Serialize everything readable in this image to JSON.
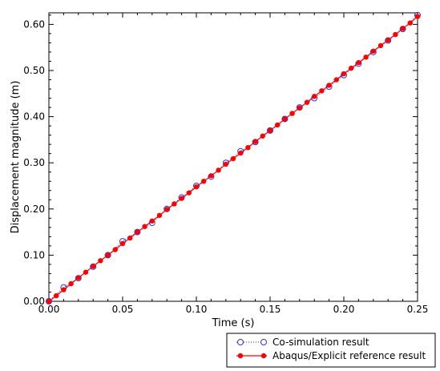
{
  "chart_data": {
    "type": "line",
    "xlabel": "Time (s)",
    "ylabel": "Displacement magnitude (m)",
    "xlim": [
      0,
      0.25
    ],
    "ylim": [
      0,
      0.625
    ],
    "xticks": [
      "0.00",
      "0.05",
      "0.10",
      "0.15",
      "0.20",
      "0.25"
    ],
    "xtick_values": [
      0,
      0.05,
      0.1,
      0.15,
      0.2,
      0.25
    ],
    "yticks": [
      "0.00",
      "0.10",
      "0.20",
      "0.30",
      "0.40",
      "0.50",
      "0.60"
    ],
    "ytick_values": [
      0,
      0.1,
      0.2,
      0.3,
      0.4,
      0.5,
      0.6
    ],
    "grid": false,
    "legend_position": "bottom-right outside",
    "series": [
      {
        "name": "Co-simulation result",
        "color": "#3333cc",
        "marker": "open-circle",
        "line": "dotted",
        "x": [
          0.0,
          0.01,
          0.02,
          0.03,
          0.04,
          0.05,
          0.06,
          0.07,
          0.08,
          0.09,
          0.1,
          0.11,
          0.12,
          0.13,
          0.14,
          0.15,
          0.16,
          0.17,
          0.18,
          0.19,
          0.2,
          0.21,
          0.22,
          0.23,
          0.24,
          0.25
        ],
        "y": [
          0.0,
          0.03,
          0.05,
          0.075,
          0.1,
          0.13,
          0.15,
          0.17,
          0.2,
          0.225,
          0.25,
          0.27,
          0.3,
          0.325,
          0.345,
          0.37,
          0.395,
          0.42,
          0.44,
          0.465,
          0.49,
          0.515,
          0.54,
          0.565,
          0.59,
          0.62
        ]
      },
      {
        "name": "Abaqus/Explicit reference result",
        "color": "#ff0000",
        "marker": "filled-circle",
        "line": "solid",
        "x": [
          0.0,
          0.005,
          0.01,
          0.015,
          0.02,
          0.025,
          0.03,
          0.035,
          0.04,
          0.045,
          0.05,
          0.055,
          0.06,
          0.065,
          0.07,
          0.075,
          0.08,
          0.085,
          0.09,
          0.095,
          0.1,
          0.105,
          0.11,
          0.115,
          0.12,
          0.125,
          0.13,
          0.135,
          0.14,
          0.145,
          0.15,
          0.155,
          0.16,
          0.165,
          0.17,
          0.175,
          0.18,
          0.185,
          0.19,
          0.195,
          0.2,
          0.205,
          0.21,
          0.215,
          0.22,
          0.225,
          0.23,
          0.235,
          0.24,
          0.245,
          0.25
        ],
        "y": [
          0.0,
          0.012,
          0.025,
          0.038,
          0.051,
          0.063,
          0.076,
          0.088,
          0.1,
          0.112,
          0.125,
          0.137,
          0.15,
          0.162,
          0.174,
          0.186,
          0.199,
          0.211,
          0.223,
          0.235,
          0.248,
          0.26,
          0.272,
          0.284,
          0.297,
          0.309,
          0.321,
          0.333,
          0.346,
          0.358,
          0.37,
          0.382,
          0.395,
          0.407,
          0.419,
          0.431,
          0.444,
          0.456,
          0.468,
          0.48,
          0.493,
          0.505,
          0.517,
          0.529,
          0.542,
          0.554,
          0.566,
          0.578,
          0.591,
          0.603,
          0.617
        ]
      }
    ]
  }
}
